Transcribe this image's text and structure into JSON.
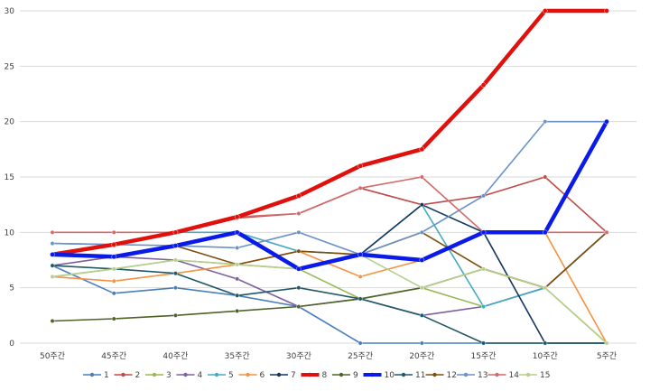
{
  "chart_data": {
    "type": "line",
    "categories": [
      "50주간",
      "45주간",
      "40주간",
      "35주간",
      "30주간",
      "25주간",
      "20주간",
      "15주간",
      "10주간",
      "5주간"
    ],
    "ylim": [
      0,
      30
    ],
    "yticks": [
      0,
      5,
      10,
      15,
      20,
      25,
      30
    ],
    "grid": true,
    "legend_position": "bottom",
    "series": [
      {
        "name": "1",
        "color": "#4a7ebb",
        "values": [
          7,
          4.5,
          5,
          4.3,
          3.3,
          0,
          0,
          0,
          0,
          0
        ]
      },
      {
        "name": "2",
        "color": "#be4b48",
        "values": [
          8,
          8.8,
          10,
          11.3,
          11.7,
          14,
          12.5,
          13.3,
          15,
          10
        ]
      },
      {
        "name": "3",
        "color": "#98b954",
        "values": [
          6,
          6.7,
          7.5,
          7.1,
          6.7,
          4,
          5,
          3.3,
          5,
          0
        ]
      },
      {
        "name": "4",
        "color": "#7d60a0",
        "values": [
          7,
          7.8,
          7.5,
          5.8,
          3.3,
          4,
          2.5,
          3.3,
          5,
          10
        ]
      },
      {
        "name": "5",
        "color": "#46aac5",
        "values": [
          9,
          8.9,
          10,
          10,
          8.3,
          8,
          12.5,
          3.3,
          5,
          10
        ]
      },
      {
        "name": "6",
        "color": "#f69240",
        "values": [
          6,
          5.6,
          6.3,
          7.1,
          8.3,
          6,
          7.5,
          10,
          10,
          0
        ]
      },
      {
        "name": "7",
        "color": "#17375e",
        "values": [
          8,
          7.8,
          8.8,
          10,
          6.7,
          8,
          12.5,
          10,
          0,
          0
        ]
      },
      {
        "name": "8",
        "color": "#e0110d",
        "values": [
          8,
          8.9,
          10,
          11.4,
          13.3,
          16,
          17.5,
          23.3,
          30,
          30
        ]
      },
      {
        "name": "9",
        "color": "#4f6228",
        "values": [
          2,
          2.2,
          2.5,
          2.9,
          3.3,
          4,
          5,
          6.7,
          5,
          10
        ]
      },
      {
        "name": "10",
        "color": "#0a1ae8",
        "values": [
          8,
          7.8,
          8.8,
          10,
          6.7,
          8,
          7.5,
          10,
          10,
          20
        ]
      },
      {
        "name": "11",
        "color": "#215867",
        "values": [
          7,
          6.7,
          6.3,
          4.3,
          5,
          4,
          2.5,
          0,
          0,
          0
        ]
      },
      {
        "name": "12",
        "color": "#7f4d0e",
        "values": [
          8,
          7.8,
          8.8,
          7.1,
          8.3,
          8,
          10,
          6.7,
          5,
          10
        ]
      },
      {
        "name": "13",
        "color": "#6a91c8",
        "values": [
          9,
          8.9,
          8.8,
          8.6,
          10,
          8,
          10,
          13.3,
          20,
          20
        ]
      },
      {
        "name": "14",
        "color": "#d26a69",
        "values": [
          10,
          10,
          10,
          11.4,
          11.7,
          14,
          15,
          10,
          10,
          10
        ]
      },
      {
        "name": "15",
        "color": "#b5cf8c",
        "values": [
          6,
          6.7,
          7.5,
          7.1,
          6.7,
          8,
          5,
          6.7,
          5,
          0
        ]
      }
    ]
  }
}
